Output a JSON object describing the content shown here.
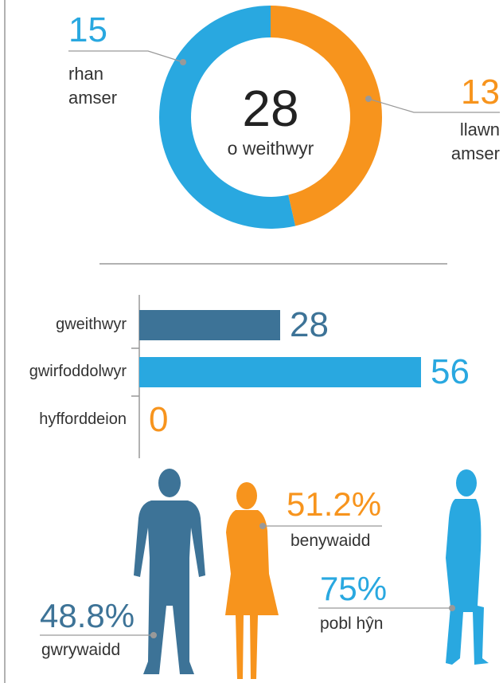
{
  "chart_data": [
    {
      "type": "donut",
      "center_value": 28,
      "center_label": "o weithwyr",
      "categories": [
        "rhan amser",
        "llawn amser"
      ],
      "values": [
        15,
        13
      ],
      "colors": [
        "#29a8e0",
        "#f7941d"
      ]
    },
    {
      "type": "bar",
      "orientation": "horizontal",
      "categories": [
        "gweithwyr",
        "gwirfoddolwyr",
        "hyfforddeion"
      ],
      "values": [
        28,
        56,
        0
      ],
      "colors": [
        "#3d7397",
        "#29a8e0",
        "#f7941d"
      ]
    },
    {
      "type": "pictogram",
      "categories": [
        "gwrywaidd",
        "benywaidd",
        "pobl hŷn"
      ],
      "values": [
        48.8,
        51.2,
        75
      ],
      "value_labels": [
        "48.8%",
        "51.2%",
        "75%"
      ],
      "colors": [
        "#3d7397",
        "#f7941d",
        "#29a8e0"
      ]
    }
  ]
}
